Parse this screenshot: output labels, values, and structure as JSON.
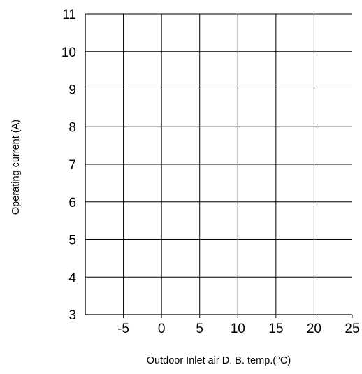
{
  "chart_data": {
    "type": "line",
    "title": "",
    "xlabel": "Outdoor Inlet air D. B. temp.(°C)",
    "ylabel": "Operating current (A)",
    "xlim": [
      -10,
      25
    ],
    "ylim": [
      3,
      11
    ],
    "x_ticks": [
      "-5",
      "0",
      "5",
      "10",
      "15",
      "20",
      "25"
    ],
    "y_ticks": [
      "3",
      "4",
      "5",
      "6",
      "7",
      "8",
      "9",
      "10",
      "11"
    ],
    "grid": true,
    "legend": "none",
    "series": []
  }
}
